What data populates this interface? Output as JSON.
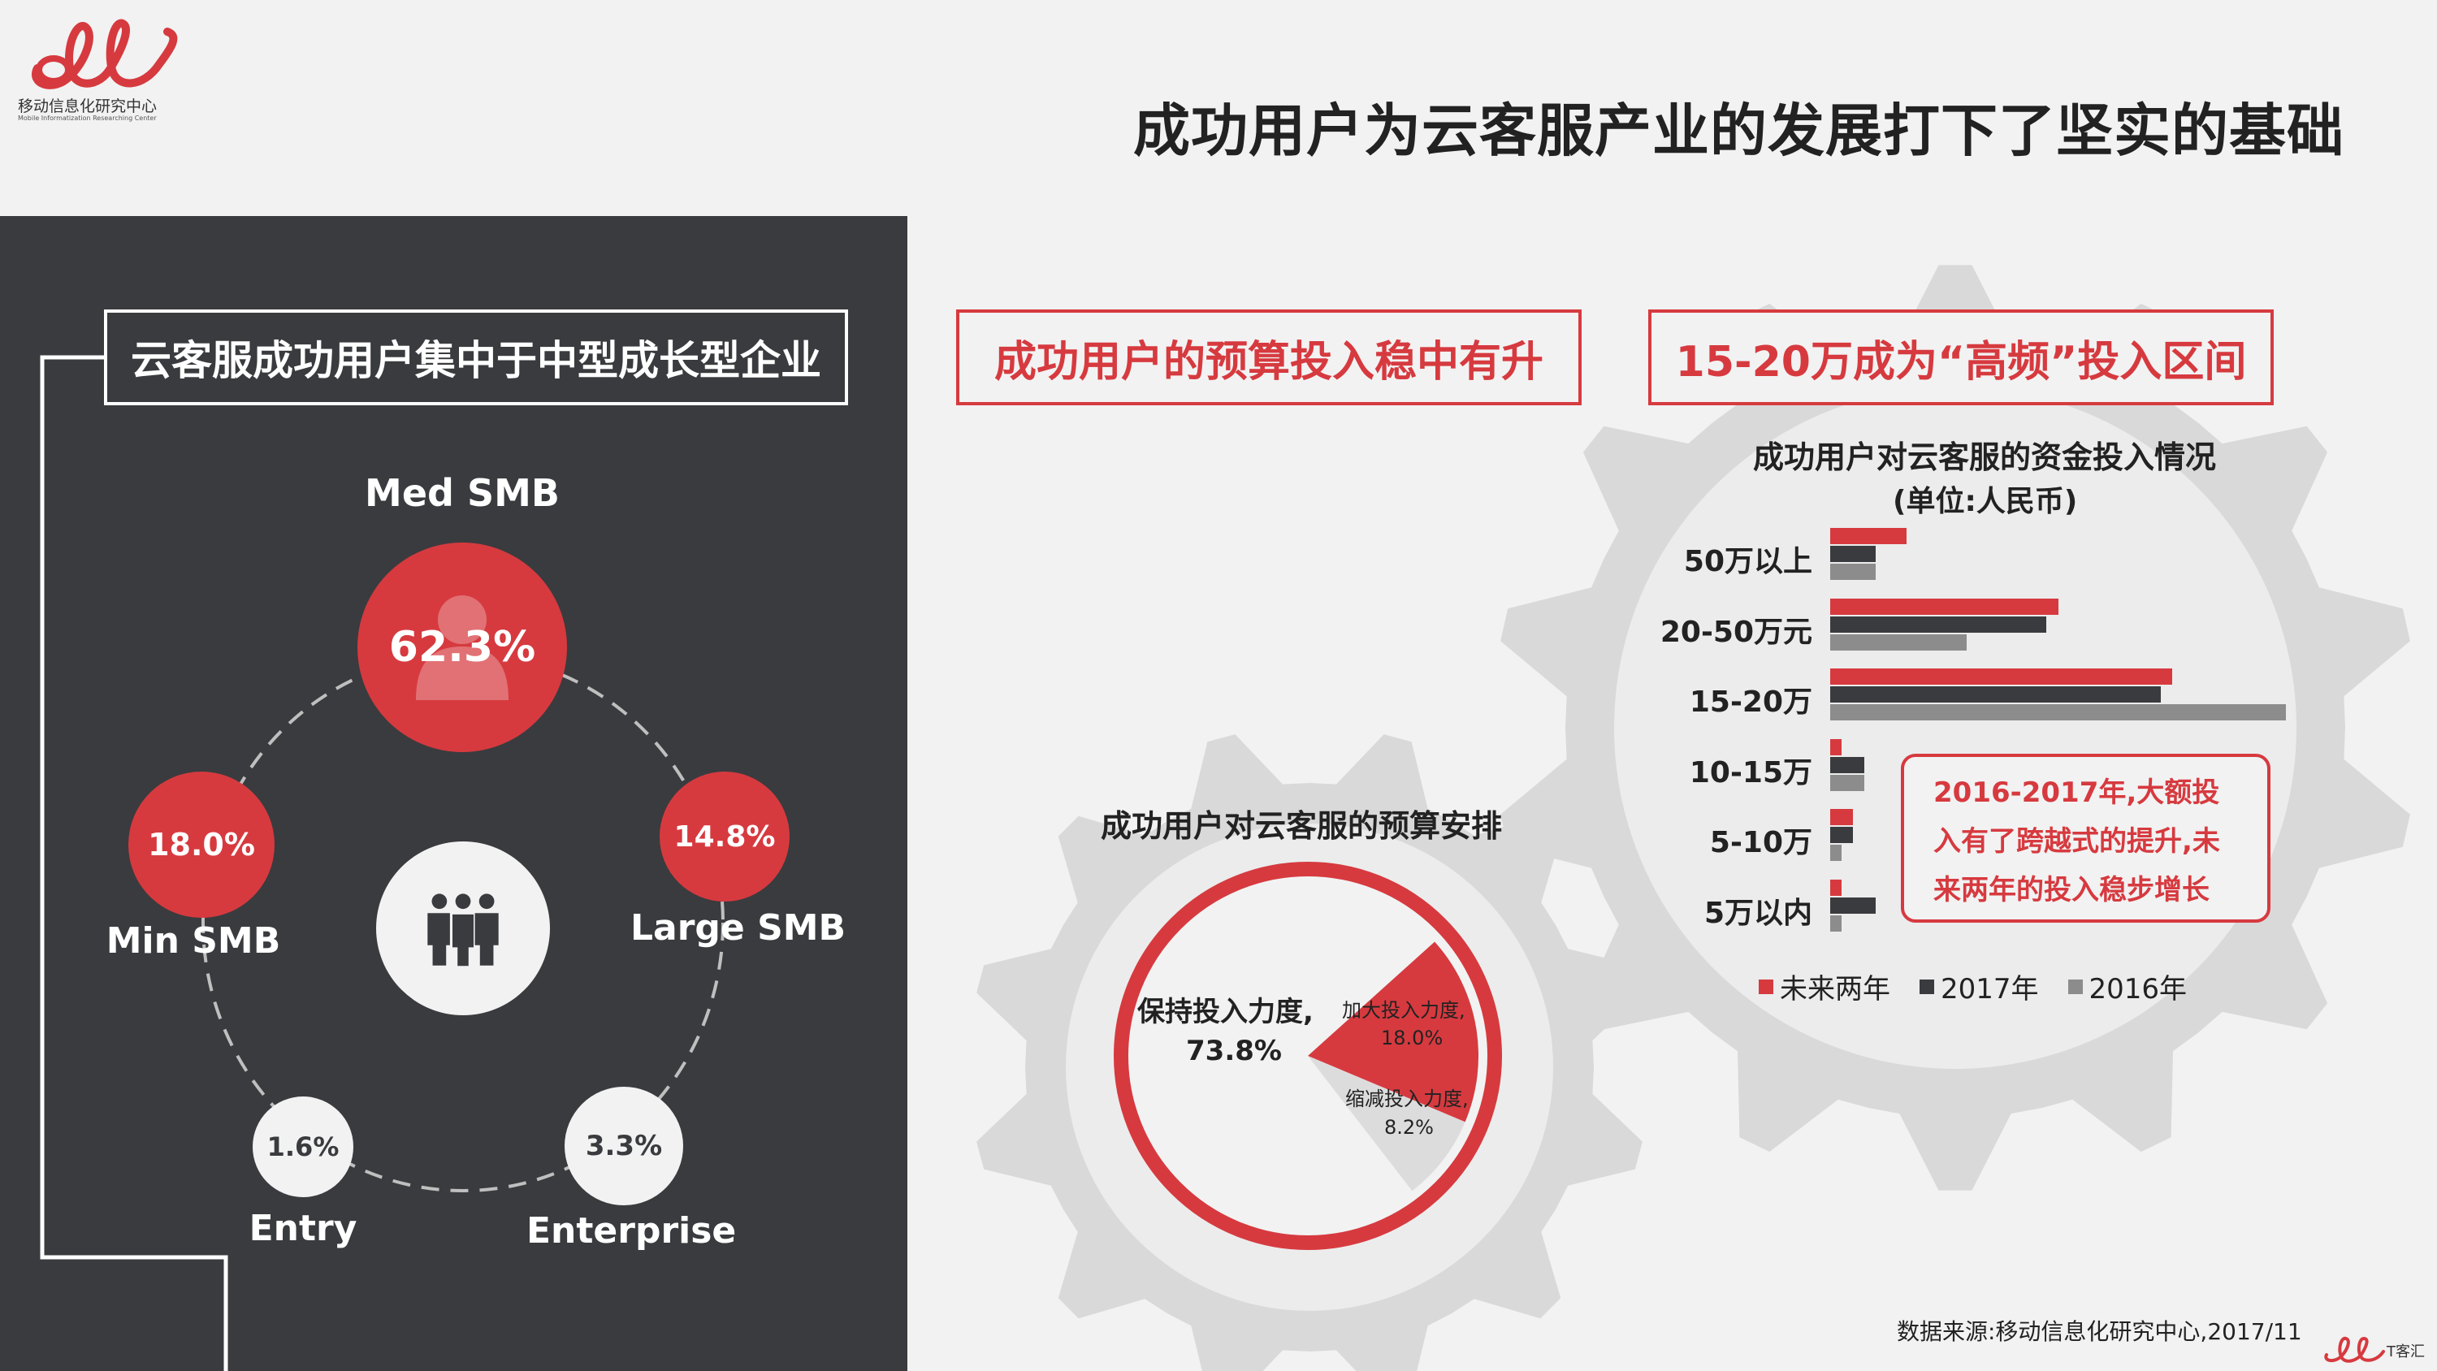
{
  "logo": {
    "name": "移动信息化研究中心",
    "subtitle": "Mobile Informatization Researching Center"
  },
  "page_title": "成功用户为云客服产业的发展打下了坚实的基础",
  "left_panel": {
    "title": "云客服成功用户集中于中型成长型企业",
    "segments": [
      {
        "name": "Med SMB",
        "value": "62.3%"
      },
      {
        "name": "Min SMB",
        "value": "18.0%"
      },
      {
        "name": "Large SMB",
        "value": "14.8%"
      },
      {
        "name": "Entry",
        "value": "1.6%"
      },
      {
        "name": "Enterprise",
        "value": "3.3%"
      }
    ],
    "icons": {
      "med_smb": "person-icon",
      "center": "group-icon"
    }
  },
  "budget_section": {
    "title": "成功用户的预算投入稳中有升",
    "chart_title": "成功用户对云客服的预算安排",
    "keep_label": "保持投入力度,",
    "keep_value": "73.8%",
    "increase_label": "加大投入力度,",
    "increase_value": "18.0%",
    "decrease_label": "缩减投入力度,",
    "decrease_value": "8.2%"
  },
  "range_section": {
    "title": "15-20万成为“高频”投入区间",
    "chart_title": "成功用户对云客服的资金投入情况",
    "chart_subtitle": "(单位:人民币)",
    "note": "2016-2017年,大额投入有了跨越式的提升,未来两年的投入稳步增长"
  },
  "chart_data": [
    {
      "type": "pie",
      "title": "成功用户对云客服的预算安排",
      "categories": [
        "保持投入力度",
        "加大投入力度",
        "缩减投入力度"
      ],
      "values": [
        73.8,
        18.0,
        8.2
      ],
      "colors": [
        "#f2f2f2",
        "#d63a3f",
        "#dcdcdc"
      ]
    },
    {
      "type": "bar",
      "orientation": "horizontal",
      "title": "成功用户对云客服的资金投入情况",
      "subtitle": "(单位:人民币)",
      "categories": [
        "50万以上",
        "20-50万元",
        "15-20万",
        "10-15万",
        "5-10万",
        "5万以内"
      ],
      "series": [
        {
          "name": "未来两年",
          "color": "#d63a3f",
          "values": [
            10,
            30,
            45,
            1.5,
            3,
            1.5
          ]
        },
        {
          "name": "2017年",
          "color": "#3a3b3e",
          "values": [
            6,
            28.5,
            43.5,
            4.5,
            3,
            6
          ]
        },
        {
          "name": "2016年",
          "color": "#8c8c8c",
          "values": [
            6,
            18,
            60,
            4.5,
            1.5,
            1.5
          ]
        }
      ],
      "legend_position": "bottom",
      "grid": false
    }
  ],
  "footer": {
    "source": "数据来源:移动信息化研究中心,2017/11",
    "corner_logo_text": "T客汇"
  },
  "colors": {
    "accent": "#d63a3f",
    "dark": "#3a3b3e",
    "light": "#f2f2f2",
    "gear": "#d9d9d9"
  }
}
